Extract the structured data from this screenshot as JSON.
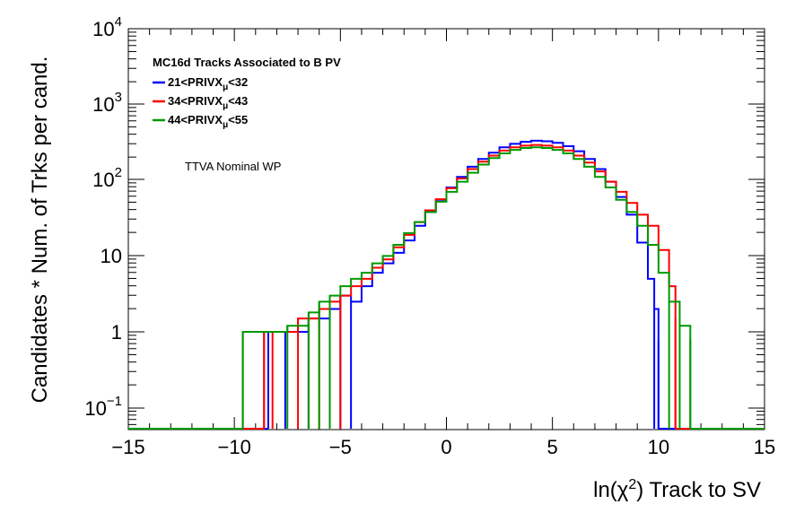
{
  "chart_data": {
    "type": "line",
    "title": "",
    "xlabel_parts": {
      "prefix": "ln(",
      "symbol": "χ",
      "exponent": "2",
      "suffix": ") Track to SV"
    },
    "ylabel": "Candidates * Num. of Trks per cand.",
    "xlim": [
      -15,
      15
    ],
    "ylim": [
      0.05,
      10000
    ],
    "yscale": "log",
    "grid": false,
    "legend_placement": "top-left",
    "legend_title": "MC16d Tracks Associated to B PV",
    "annotation": "TTVA Nominal WP",
    "x_ticks": [
      "−15",
      "−10",
      "−5",
      "0",
      "5",
      "10",
      "15"
    ],
    "y_ticks": [
      {
        "mantissa": "10",
        "exponent": "4"
      },
      {
        "mantissa": "10",
        "exponent": "3"
      },
      {
        "mantissa": "10",
        "exponent": "2"
      },
      {
        "mantissa": "10",
        "exponent": ""
      },
      {
        "mantissa": "1",
        "exponent": ""
      },
      {
        "mantissa": "10",
        "exponent": "−1"
      }
    ],
    "series": [
      {
        "label": {
          "pre": "21<PRIVX",
          "sub": "μ",
          "post": "<32"
        },
        "color": "#0000ff",
        "x": [
          -8.4,
          -7.6,
          -6.5,
          -5.5,
          -5.0,
          -4.5,
          -4.0,
          -3.5,
          -3.0,
          -2.5,
          -2.0,
          -1.5,
          -1.0,
          -0.5,
          0.0,
          0.5,
          1.0,
          1.5,
          2.0,
          2.5,
          3.0,
          3.5,
          4.0,
          4.5,
          5.0,
          5.5,
          6.0,
          6.5,
          7.0,
          7.5,
          8.0,
          8.5,
          9.0,
          9.5,
          9.8,
          10.0
        ],
        "y": [
          1.0,
          1.0,
          1.5,
          2.0,
          3.0,
          2.5,
          4.0,
          6.0,
          8.0,
          11.0,
          16.0,
          25.0,
          38.0,
          55.0,
          80.0,
          110.0,
          150.0,
          190.0,
          230.0,
          270.0,
          300.0,
          320.0,
          330.0,
          325.0,
          310.0,
          280.0,
          240.0,
          190.0,
          140.0,
          95.0,
          60.0,
          35.0,
          15.0,
          5.0,
          2.0,
          0.8
        ]
      },
      {
        "label": {
          "pre": "34<PRIVX",
          "sub": "μ",
          "post": "<43"
        },
        "color": "#ff0000",
        "x": [
          -8.6,
          -8.2,
          -7.0,
          -6.0,
          -5.5,
          -5.0,
          -4.5,
          -4.0,
          -3.5,
          -3.0,
          -2.5,
          -2.0,
          -1.5,
          -1.0,
          -0.5,
          0.0,
          0.5,
          1.0,
          1.5,
          2.0,
          2.5,
          3.0,
          3.5,
          4.0,
          4.5,
          5.0,
          5.5,
          6.0,
          6.5,
          7.0,
          7.5,
          8.0,
          8.5,
          9.0,
          9.5,
          10.0,
          10.5,
          10.8
        ],
        "y": [
          1.0,
          1.0,
          1.5,
          2.0,
          2.5,
          3.0,
          4.0,
          5.0,
          7.0,
          9.0,
          13.0,
          19.0,
          28.0,
          40.0,
          56.0,
          78.0,
          105.0,
          140.0,
          175.0,
          210.0,
          245.0,
          270.0,
          285.0,
          290.0,
          285.0,
          270.0,
          245.0,
          210.0,
          170.0,
          130.0,
          95.0,
          70.0,
          50.0,
          35.0,
          25.0,
          12.0,
          4.0,
          1.5
        ]
      },
      {
        "label": {
          "pre": "44<PRIVX",
          "sub": "μ",
          "post": "<55"
        },
        "color": "#009900",
        "x": [
          -9.6,
          -7.5,
          -6.5,
          -6.0,
          -5.5,
          -5.0,
          -4.5,
          -4.0,
          -3.5,
          -3.0,
          -2.5,
          -2.0,
          -1.5,
          -1.0,
          -0.5,
          0.0,
          0.5,
          1.0,
          1.5,
          2.0,
          2.5,
          3.0,
          3.5,
          4.0,
          4.5,
          5.0,
          5.5,
          6.0,
          6.5,
          7.0,
          7.5,
          8.0,
          8.5,
          9.0,
          9.5,
          10.0,
          10.5,
          11.0,
          11.5
        ],
        "y": [
          1.0,
          1.2,
          1.8,
          2.5,
          3.0,
          4.0,
          5.0,
          6.0,
          8.0,
          10.0,
          14.0,
          20.0,
          28.0,
          38.0,
          52.0,
          70.0,
          95.0,
          125.0,
          160.0,
          195.0,
          225.0,
          250.0,
          265.0,
          270.0,
          265.0,
          250.0,
          225.0,
          190.0,
          150.0,
          110.0,
          80.0,
          55.0,
          38.0,
          25.0,
          14.0,
          6.0,
          2.5,
          1.2,
          0.8
        ]
      }
    ]
  }
}
